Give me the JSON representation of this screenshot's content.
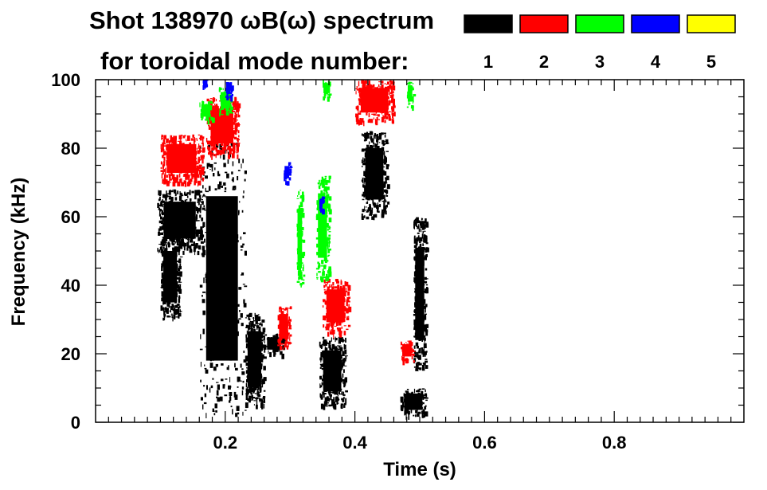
{
  "chart_data": {
    "type": "heatmap",
    "title_line1": "Shot 138970 ωB(ω) spectrum",
    "title_line2": "for toroidal mode number:",
    "xlabel": "Time (s)",
    "ylabel": "Frequency (kHz)",
    "xlim": [
      0.0,
      1.0
    ],
    "ylim": [
      0,
      100
    ],
    "x_ticks": [
      0.2,
      0.4,
      0.6,
      0.8
    ],
    "x_tick_labels": [
      "0.2",
      "0.4",
      "0.6",
      "0.8"
    ],
    "y_ticks": [
      0,
      20,
      40,
      60,
      80,
      100
    ],
    "y_tick_labels": [
      "0",
      "20",
      "40",
      "60",
      "80",
      "100"
    ],
    "legend": {
      "placement": "top-right",
      "entries": [
        {
          "label": "1",
          "color": "#000000"
        },
        {
          "label": "2",
          "color": "#ff0000"
        },
        {
          "label": "3",
          "color": "#00ff00"
        },
        {
          "label": "4",
          "color": "#0000ff"
        },
        {
          "label": "5",
          "color": "#ffff00"
        }
      ]
    },
    "regions": [
      {
        "mode": "1",
        "t": [
          0.095,
          0.165
        ],
        "f": [
          50,
          68
        ]
      },
      {
        "mode": "1",
        "t": [
          0.1,
          0.13
        ],
        "f": [
          30,
          55
        ]
      },
      {
        "mode": "1",
        "t": [
          0.16,
          0.23
        ],
        "f": [
          2,
          82
        ]
      },
      {
        "mode": "1",
        "t": [
          0.23,
          0.26
        ],
        "f": [
          5,
          32
        ]
      },
      {
        "mode": "1",
        "t": [
          0.26,
          0.29
        ],
        "f": [
          20,
          26
        ]
      },
      {
        "mode": "1",
        "t": [
          0.345,
          0.385
        ],
        "f": [
          5,
          25
        ]
      },
      {
        "mode": "1",
        "t": [
          0.41,
          0.45
        ],
        "f": [
          60,
          85
        ]
      },
      {
        "mode": "1",
        "t": [
          0.47,
          0.51
        ],
        "f": [
          2,
          10
        ]
      },
      {
        "mode": "1",
        "t": [
          0.49,
          0.51
        ],
        "f": [
          15,
          60
        ]
      },
      {
        "mode": "2",
        "t": [
          0.1,
          0.165
        ],
        "f": [
          70,
          84
        ]
      },
      {
        "mode": "2",
        "t": [
          0.17,
          0.22
        ],
        "f": [
          78,
          95
        ]
      },
      {
        "mode": "2",
        "t": [
          0.28,
          0.3
        ],
        "f": [
          22,
          34
        ]
      },
      {
        "mode": "2",
        "t": [
          0.35,
          0.39
        ],
        "f": [
          26,
          42
        ]
      },
      {
        "mode": "2",
        "t": [
          0.4,
          0.46
        ],
        "f": [
          88,
          100
        ]
      },
      {
        "mode": "2",
        "t": [
          0.47,
          0.49
        ],
        "f": [
          18,
          24
        ]
      },
      {
        "mode": "3",
        "t": [
          0.16,
          0.18
        ],
        "f": [
          88,
          94
        ]
      },
      {
        "mode": "3",
        "t": [
          0.19,
          0.21
        ],
        "f": [
          90,
          98
        ]
      },
      {
        "mode": "3",
        "t": [
          0.31,
          0.32
        ],
        "f": [
          40,
          68
        ]
      },
      {
        "mode": "3",
        "t": [
          0.34,
          0.36
        ],
        "f": [
          42,
          72
        ]
      },
      {
        "mode": "3",
        "t": [
          0.35,
          0.36
        ],
        "f": [
          95,
          100
        ]
      },
      {
        "mode": "3",
        "t": [
          0.48,
          0.49
        ],
        "f": [
          92,
          100
        ]
      },
      {
        "mode": "4",
        "t": [
          0.165,
          0.17
        ],
        "f": [
          98,
          100
        ]
      },
      {
        "mode": "4",
        "t": [
          0.2,
          0.21
        ],
        "f": [
          95,
          100
        ]
      },
      {
        "mode": "4",
        "t": [
          0.29,
          0.3
        ],
        "f": [
          70,
          76
        ]
      },
      {
        "mode": "4",
        "t": [
          0.345,
          0.35
        ],
        "f": [
          62,
          66
        ]
      }
    ]
  }
}
